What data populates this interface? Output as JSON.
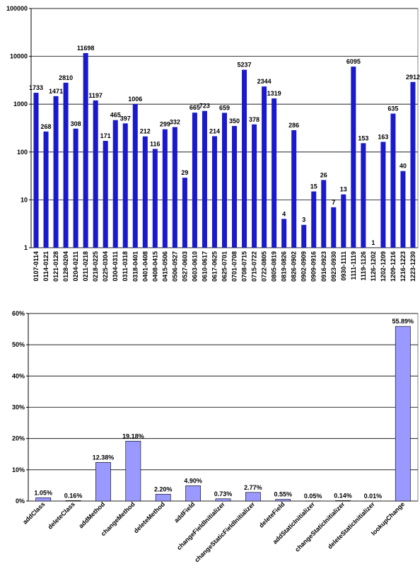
{
  "chart_data": [
    {
      "type": "bar",
      "yscale": "log",
      "color": "#1a1acc",
      "grid": true,
      "categories": [
        "0107-0114",
        "0114-0121",
        "0121-0128",
        "0128-0204",
        "0204-0211",
        "0211-0218",
        "0218-0225",
        "0225-0304",
        "0304-0311",
        "0311-0318",
        "0318-0401",
        "0401-0408",
        "0408-0415",
        "0415-0506",
        "0506-0527",
        "0527-0603",
        "0603-0610",
        "0610-0617",
        "0617-0625",
        "0625-0701",
        "0701-0708",
        "0708-0715",
        "0715-0722",
        "0722-0805",
        "0805-0819",
        "0819-0826",
        "0826-0902",
        "0902-0909",
        "0909-0916",
        "0916-0923",
        "0923-0930",
        "0930-1111",
        "1111-1119",
        "1119-1126",
        "1126-1202",
        "1202-1209",
        "1209-1216",
        "1216-1223",
        "1223-1230"
      ],
      "values": [
        1733,
        268,
        1471,
        2810,
        308,
        11698,
        1197,
        171,
        465,
        397,
        1006,
        212,
        116,
        299,
        332,
        29,
        665,
        723,
        214,
        659,
        350,
        5237,
        378,
        2344,
        1319,
        4,
        286,
        3,
        15,
        26,
        7,
        13,
        6095,
        153,
        1,
        163,
        635,
        40,
        2912
      ],
      "ylim": [
        1,
        100000
      ],
      "yticks": [
        1,
        10,
        100,
        1000,
        10000,
        100000
      ]
    },
    {
      "type": "bar",
      "color": "#9999ff",
      "grid": true,
      "categories": [
        "addClass",
        "deleteClass",
        "addMethod",
        "changeMethod",
        "deleteMethod",
        "addField",
        "changeFieldInitializer",
        "changeStaticFieldInitializer",
        "deleteField",
        "addStaticInitializer",
        "changeStaticInitializer",
        "deleteStaticInitializer",
        "lookupChange"
      ],
      "values": [
        1.05,
        0.16,
        12.38,
        19.18,
        2.2,
        4.9,
        0.73,
        2.77,
        0.55,
        0.05,
        0.14,
        0.01,
        55.89
      ],
      "value_labels": [
        "1.05%",
        "0.16%",
        "12.38%",
        "19.18%",
        "2.20%",
        "4.90%",
        "0.73%",
        "2.77%",
        "0.55%",
        "0.05%",
        "0.14%",
        "0.01%",
        "55.89%"
      ],
      "ylim": [
        0,
        60
      ],
      "yticks": [
        {
          "value": 0,
          "label": "0%"
        },
        {
          "value": 10,
          "label": "10%"
        },
        {
          "value": 20,
          "label": "20%"
        },
        {
          "value": 30,
          "label": "30%"
        },
        {
          "value": 40,
          "label": "40%"
        },
        {
          "value": 50,
          "label": "50%"
        },
        {
          "value": 60,
          "label": "60%"
        }
      ]
    }
  ]
}
